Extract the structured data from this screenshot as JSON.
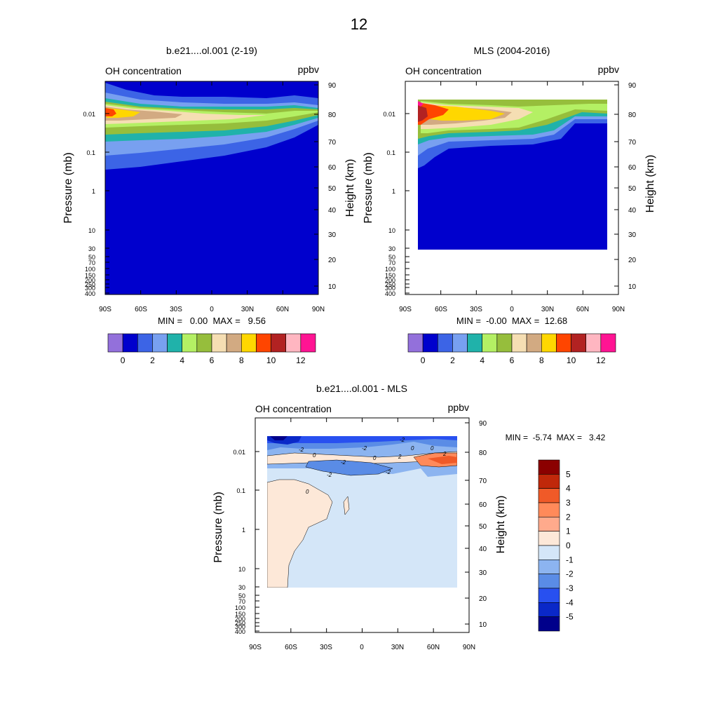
{
  "figure_title": "12",
  "colors": {
    "frame": "#000000",
    "background": "#ffffff",
    "contour_line": "#000000"
  },
  "chart_data": [
    {
      "id": "model",
      "type": "heatmap",
      "title": "b.e21....ol.001 (2-19)",
      "left_label": "OH concentration",
      "right_label": "ppbv",
      "ylabel": "Pressure (mb)",
      "ylabel_right": "Height (km)",
      "x_ticks": [
        "90S",
        "60S",
        "30S",
        "0",
        "30N",
        "60N",
        "90N"
      ],
      "xlim": [
        -90,
        90
      ],
      "y_ticks_pressure": [
        "0.01",
        "0.1",
        "1",
        "10",
        "30",
        "50",
        "70",
        "100",
        "150",
        "200",
        "250",
        "300",
        "400"
      ],
      "y_ticks_height": [
        "10",
        "20",
        "30",
        "40",
        "50",
        "60",
        "70",
        "80",
        "90"
      ],
      "stats_text": "MIN =   0.00  MAX =   9.56",
      "min": 0.0,
      "max": 9.56,
      "colorbar": {
        "levels": [
          0,
          1,
          2,
          3,
          4,
          5,
          6,
          7,
          8,
          9,
          10,
          11,
          12
        ],
        "tick_labels": [
          "0",
          "2",
          "4",
          "6",
          "8",
          "10",
          "12"
        ],
        "colors": [
          "#9370db",
          "#0000cd",
          "#3c64e6",
          "#78a0f0",
          "#20b2aa",
          "#b4f064",
          "#96be3c",
          "#f5deb3",
          "#d2aa82",
          "#ffd700",
          "#ff4500",
          "#b22222",
          "#ffb6c1",
          "#ff1493"
        ]
      }
    },
    {
      "id": "mls",
      "type": "heatmap",
      "title": "MLS (2004-2016)",
      "left_label": "OH concentration",
      "right_label": "ppbv",
      "ylabel": "Pressure (mb)",
      "ylabel_right": "Height (km)",
      "x_ticks": [
        "90S",
        "60S",
        "30S",
        "0",
        "30N",
        "60N",
        "90N"
      ],
      "xlim": [
        -90,
        90
      ],
      "y_ticks_pressure": [
        "0.01",
        "0.1",
        "1",
        "10",
        "30",
        "50",
        "70",
        "100",
        "150",
        "200",
        "250",
        "300",
        "400"
      ],
      "y_ticks_height": [
        "10",
        "20",
        "30",
        "40",
        "50",
        "60",
        "70",
        "80",
        "90"
      ],
      "stats_text": "MIN =  -0.00  MAX =  12.68",
      "min": -0.0,
      "max": 12.68,
      "colorbar": {
        "levels": [
          0,
          1,
          2,
          3,
          4,
          5,
          6,
          7,
          8,
          9,
          10,
          11,
          12
        ],
        "tick_labels": [
          "0",
          "2",
          "4",
          "6",
          "8",
          "10",
          "12"
        ],
        "colors": [
          "#9370db",
          "#0000cd",
          "#3c64e6",
          "#78a0f0",
          "#20b2aa",
          "#b4f064",
          "#96be3c",
          "#f5deb3",
          "#d2aa82",
          "#ffd700",
          "#ff4500",
          "#b22222",
          "#ffb6c1",
          "#ff1493"
        ]
      }
    },
    {
      "id": "diff",
      "type": "heatmap",
      "title": "b.e21....ol.001 - MLS",
      "left_label": "OH concentration",
      "right_label": "ppbv",
      "ylabel": "Pressure (mb)",
      "ylabel_right": "Height (km)",
      "x_ticks": [
        "90S",
        "60S",
        "30S",
        "0",
        "30N",
        "60N",
        "90N"
      ],
      "xlim": [
        -90,
        90
      ],
      "y_ticks_pressure": [
        "0.01",
        "0.1",
        "1",
        "10",
        "30",
        "50",
        "70",
        "100",
        "150",
        "200",
        "250",
        "300",
        "400"
      ],
      "y_ticks_height": [
        "10",
        "20",
        "30",
        "40",
        "50",
        "60",
        "70",
        "80",
        "90"
      ],
      "stats_text": "MIN =  -5.74  MAX =   3.42",
      "min": -5.74,
      "max": 3.42,
      "contour_labels": [
        "0",
        "-2",
        "0",
        "-2",
        "-2",
        "2",
        "-2",
        "0",
        "2",
        "0",
        "-2",
        "-2",
        "0"
      ],
      "colorbar": {
        "levels": [
          5,
          4,
          3,
          2,
          1,
          0,
          -1,
          -2,
          -3,
          -4,
          -5
        ],
        "tick_labels": [
          "5",
          "4",
          "3",
          "2",
          "1",
          "0",
          "-1",
          "-2",
          "-3",
          "-4",
          "-5"
        ],
        "colors": [
          "#8b0000",
          "#c0280a",
          "#f05a28",
          "#ff8a5a",
          "#ffaa8c",
          "#fde8d8",
          "#d4e6f8",
          "#8cb4f0",
          "#5a8ce6",
          "#2850f0",
          "#0a28c8",
          "#00008b"
        ]
      }
    }
  ]
}
